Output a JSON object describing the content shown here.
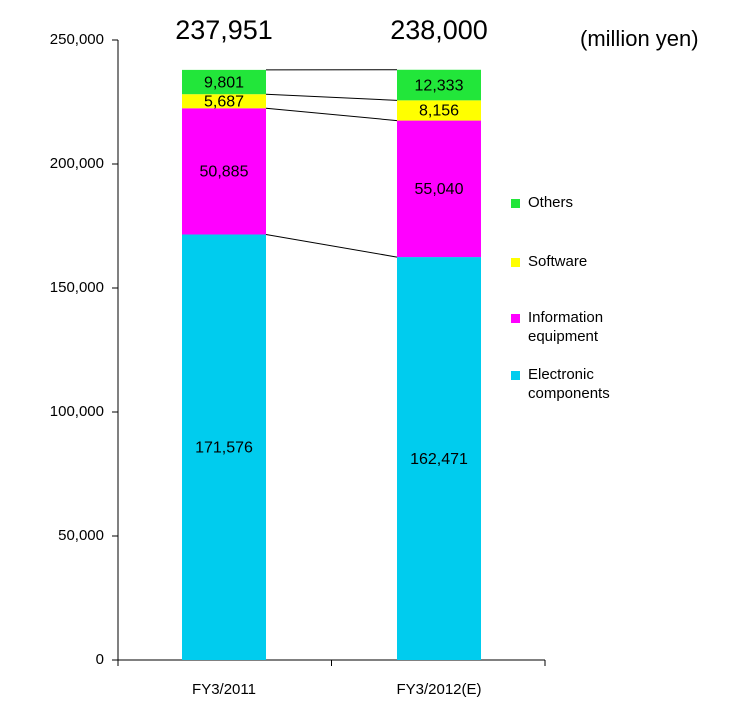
{
  "chart_data": {
    "type": "stacked_bar",
    "unit": "(million yen)",
    "categories": [
      "FY3/2011",
      "FY3/2012(E)"
    ],
    "series": [
      {
        "name": "Electronic components",
        "color": "#00ccee",
        "values": [
          171576,
          162471
        ],
        "value_labels": [
          "171,576",
          "162,471"
        ]
      },
      {
        "name": "Information equipment",
        "color": "#ff00ff",
        "values": [
          50885,
          55040
        ],
        "value_labels": [
          "50,885",
          "55,040"
        ]
      },
      {
        "name": "Software",
        "color": "#ffff00",
        "values": [
          5687,
          8156
        ],
        "value_labels": [
          "5,687",
          "8,156"
        ]
      },
      {
        "name": "Others",
        "color": "#22e63a",
        "values": [
          9801,
          12333
        ],
        "value_labels": [
          "9,801",
          "12,333"
        ]
      }
    ],
    "totals": {
      "values": [
        237951,
        238000
      ],
      "value_labels": [
        "237,951",
        "238,000"
      ]
    },
    "ylim": [
      0,
      250000
    ],
    "yticks": [
      0,
      {
        "value": 50000,
        "label": "50,000"
      },
      {
        "value": 100000,
        "label": "100,000"
      },
      {
        "value": 150000,
        "label": "150,000"
      },
      {
        "value": 200000,
        "label": "200,000"
      },
      {
        "value": 250000,
        "label": "250,000"
      }
    ]
  }
}
